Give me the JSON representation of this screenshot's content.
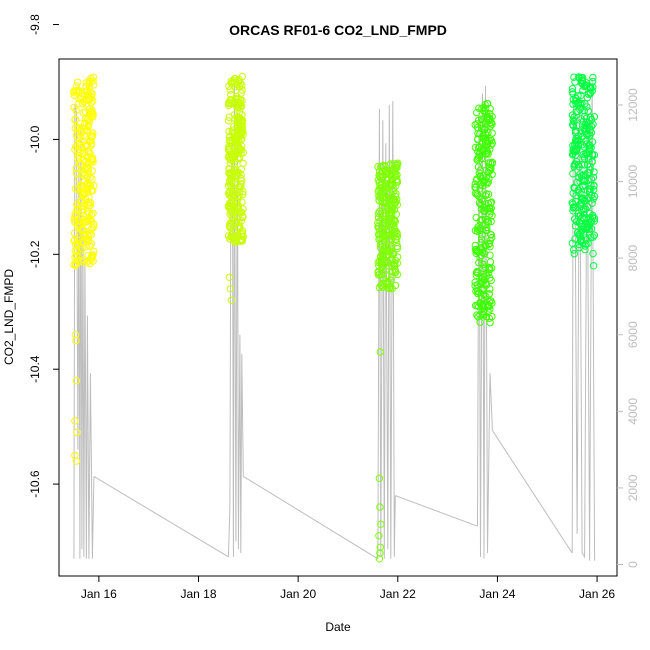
{
  "chart_data": {
    "type": "scatter",
    "title": "ORCAS RF01-6 CO2_LND_FMPD",
    "xlabel": "Date",
    "ylabel": "CO2_LND_FMPD",
    "x_ticks": [
      "Jan 16",
      "Jan 18",
      "Jan 20",
      "Jan 22",
      "Jan 24",
      "Jan 26"
    ],
    "x_tick_days": [
      16,
      18,
      20,
      22,
      24,
      26
    ],
    "xlim": [
      15.2,
      26.4
    ],
    "ylim": [
      -10.76,
      -9.86
    ],
    "y_ticks": [
      -10.6,
      -10.4,
      -10.2,
      -10.0,
      -9.8
    ],
    "y2_ticks": [
      0,
      2000,
      4000,
      6000,
      8000,
      10000,
      12000
    ],
    "y2lim": [
      -300,
      13200
    ],
    "series": [
      {
        "color": "#ffff00",
        "x_range": [
          15.5,
          15.9
        ],
        "core_range": [
          -10.22,
          -9.89
        ],
        "outliers": [
          [
            15.53,
            -10.34
          ],
          [
            15.55,
            -10.42
          ],
          [
            15.52,
            -10.49
          ],
          [
            15.56,
            -10.51
          ],
          [
            15.52,
            -10.55
          ],
          [
            15.55,
            -10.56
          ],
          [
            15.54,
            -10.35
          ]
        ]
      },
      {
        "color": "#c8ff00",
        "x_range": [
          18.6,
          18.9
        ],
        "core_range": [
          -10.18,
          -9.89
        ],
        "outliers": [
          [
            18.62,
            -10.24
          ],
          [
            18.64,
            -10.26
          ],
          [
            18.66,
            -10.28
          ]
        ]
      },
      {
        "color": "#7fff00",
        "x_range": [
          21.6,
          22.0
        ],
        "core_range": [
          -10.26,
          -10.04
        ],
        "outliers": [
          [
            21.65,
            -10.37
          ],
          [
            21.63,
            -10.59
          ],
          [
            21.64,
            -10.64
          ],
          [
            21.66,
            -10.67
          ],
          [
            21.62,
            -10.69
          ],
          [
            21.65,
            -10.71
          ],
          [
            21.64,
            -10.72
          ],
          [
            21.63,
            -10.73
          ]
        ]
      },
      {
        "color": "#3fff00",
        "x_range": [
          23.55,
          23.9
        ],
        "core_range": [
          -10.32,
          -9.93
        ],
        "outliers": []
      },
      {
        "color": "#00ff40",
        "x_range": [
          25.5,
          25.95
        ],
        "core_range": [
          -10.2,
          -9.89
        ],
        "outliers": [
          [
            25.82,
            -10.14
          ],
          [
            25.71,
            -10.18
          ],
          [
            25.92,
            -10.17
          ],
          [
            25.93,
            -10.22
          ]
        ]
      }
    ],
    "altitude_series": {
      "color": "#bdbdbd",
      "axis": "right",
      "path": [
        [
          15.5,
          150
        ],
        [
          15.52,
          12000
        ],
        [
          15.55,
          11800
        ],
        [
          15.58,
          3000
        ],
        [
          15.6,
          10500
        ],
        [
          15.62,
          150
        ],
        [
          15.64,
          11500
        ],
        [
          15.66,
          400
        ],
        [
          15.68,
          9000
        ],
        [
          15.7,
          200
        ],
        [
          15.72,
          8000
        ],
        [
          15.75,
          150
        ],
        [
          15.77,
          6500
        ],
        [
          15.8,
          150
        ],
        [
          15.83,
          5000
        ],
        [
          15.87,
          150
        ],
        [
          15.9,
          2300
        ],
        [
          18.6,
          200
        ],
        [
          18.63,
          1500
        ],
        [
          18.65,
          10000
        ],
        [
          18.68,
          11000
        ],
        [
          18.7,
          200
        ],
        [
          18.72,
          12500
        ],
        [
          18.75,
          600
        ],
        [
          18.78,
          11800
        ],
        [
          18.8,
          400
        ],
        [
          18.83,
          6000
        ],
        [
          18.85,
          300
        ],
        [
          18.87,
          5500
        ],
        [
          18.9,
          2300
        ],
        [
          21.6,
          150
        ],
        [
          21.63,
          11900
        ],
        [
          21.66,
          200
        ],
        [
          21.7,
          11600
        ],
        [
          21.73,
          150
        ],
        [
          21.76,
          11000
        ],
        [
          21.8,
          400
        ],
        [
          21.83,
          12000
        ],
        [
          21.86,
          150
        ],
        [
          21.9,
          12100
        ],
        [
          21.93,
          200
        ],
        [
          21.95,
          1800
        ],
        [
          23.6,
          1000
        ],
        [
          23.63,
          11800
        ],
        [
          23.66,
          200
        ],
        [
          23.7,
          12300
        ],
        [
          23.73,
          150
        ],
        [
          23.76,
          12500
        ],
        [
          23.8,
          300
        ],
        [
          23.85,
          5000
        ],
        [
          23.9,
          3500
        ],
        [
          25.5,
          300
        ],
        [
          25.52,
          12000
        ],
        [
          25.55,
          11500
        ],
        [
          25.6,
          800
        ],
        [
          25.65,
          12100
        ],
        [
          25.7,
          300
        ],
        [
          25.75,
          200
        ],
        [
          25.8,
          11900
        ],
        [
          25.85,
          100
        ],
        [
          25.9,
          12700
        ],
        [
          25.95,
          100
        ]
      ],
      "connectors": [
        [
          [
            15.9,
            2300
          ],
          [
            18.6,
            200
          ]
        ],
        [
          [
            18.9,
            2300
          ],
          [
            21.6,
            150
          ]
        ],
        [
          [
            21.95,
            1800
          ],
          [
            23.6,
            1000
          ]
        ],
        [
          [
            23.9,
            3500
          ],
          [
            25.5,
            300
          ]
        ]
      ]
    }
  }
}
